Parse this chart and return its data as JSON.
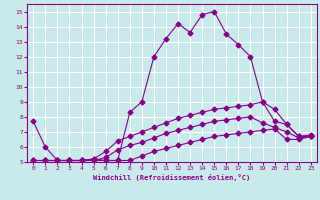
{
  "xlabel": "Windchill (Refroidissement éolien,°C)",
  "xlim": [
    -0.5,
    23.5
  ],
  "ylim": [
    5,
    15.5
  ],
  "xticks": [
    0,
    1,
    2,
    3,
    4,
    5,
    6,
    7,
    8,
    9,
    10,
    11,
    12,
    13,
    14,
    15,
    16,
    17,
    18,
    19,
    20,
    21,
    22,
    23
  ],
  "yticks": [
    5,
    6,
    7,
    8,
    9,
    10,
    11,
    12,
    13,
    14,
    15
  ],
  "bg_color": "#c8eaea",
  "line_color": "#8b008b",
  "grid_color": "#ffffff",
  "line1": {
    "x": [
      0,
      1,
      2,
      3,
      4,
      5,
      6,
      7,
      8,
      9,
      10,
      11,
      12,
      13,
      14,
      15,
      16,
      17,
      18,
      19,
      20,
      21,
      22,
      23
    ],
    "y": [
      7.7,
      6.0,
      5.1,
      5.1,
      5.1,
      5.2,
      5.1,
      5.1,
      8.3,
      9.0,
      12.0,
      13.2,
      14.2,
      13.6,
      14.8,
      15.0,
      13.5,
      12.8,
      12.0,
      9.0,
      8.5,
      7.5,
      6.7,
      6.8
    ]
  },
  "line2": {
    "x": [
      0,
      1,
      2,
      3,
      4,
      5,
      6,
      7,
      8,
      9,
      10,
      11,
      12,
      13,
      14,
      15,
      16,
      17,
      18,
      19,
      20,
      21,
      22,
      23
    ],
    "y": [
      5.1,
      5.1,
      5.1,
      5.1,
      5.1,
      5.1,
      5.1,
      5.1,
      5.1,
      5.4,
      5.7,
      5.9,
      6.1,
      6.3,
      6.5,
      6.7,
      6.8,
      6.9,
      7.0,
      7.1,
      7.2,
      6.5,
      6.5,
      6.7
    ]
  },
  "line3": {
    "x": [
      0,
      1,
      2,
      3,
      4,
      5,
      6,
      7,
      8,
      9,
      10,
      11,
      12,
      13,
      14,
      15,
      16,
      17,
      18,
      19,
      20,
      21,
      22,
      23
    ],
    "y": [
      5.1,
      5.1,
      5.1,
      5.1,
      5.1,
      5.1,
      5.3,
      5.8,
      6.1,
      6.3,
      6.6,
      6.9,
      7.1,
      7.3,
      7.5,
      7.7,
      7.8,
      7.9,
      8.0,
      7.6,
      7.3,
      7.0,
      6.6,
      6.7
    ]
  },
  "line4": {
    "x": [
      1,
      2,
      3,
      4,
      5,
      6,
      7,
      8,
      9,
      10,
      11,
      12,
      13,
      14,
      15,
      16,
      17,
      18,
      19,
      20,
      21,
      22,
      23
    ],
    "y": [
      5.1,
      5.1,
      5.1,
      5.1,
      5.2,
      5.7,
      6.4,
      6.7,
      7.0,
      7.3,
      7.6,
      7.9,
      8.1,
      8.3,
      8.5,
      8.6,
      8.7,
      8.8,
      9.0,
      7.7,
      7.5,
      6.7,
      6.7
    ]
  }
}
